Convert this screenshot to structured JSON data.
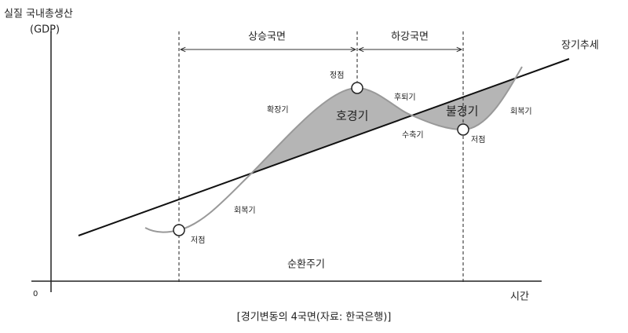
{
  "axes": {
    "y_label": "실질 국내총생산",
    "y_label_sub": "(GDP)",
    "origin": "0",
    "x_label": "시간"
  },
  "phases": {
    "rising": "상승국면",
    "falling": "하강국면"
  },
  "trend": "장기추세",
  "points": {
    "peak": "정점",
    "trough_left": "저점",
    "trough_right": "저점"
  },
  "periods": {
    "expansion": "확장기",
    "boom": "호경기",
    "recession_phase": "후퇴기",
    "depression": "불경기",
    "recovery_right": "회복기",
    "contraction": "수축기",
    "recovery_left": "회복기"
  },
  "cycle": "순환주기",
  "caption": "[경기변동의 4국면(자료: 한국은행)]"
}
